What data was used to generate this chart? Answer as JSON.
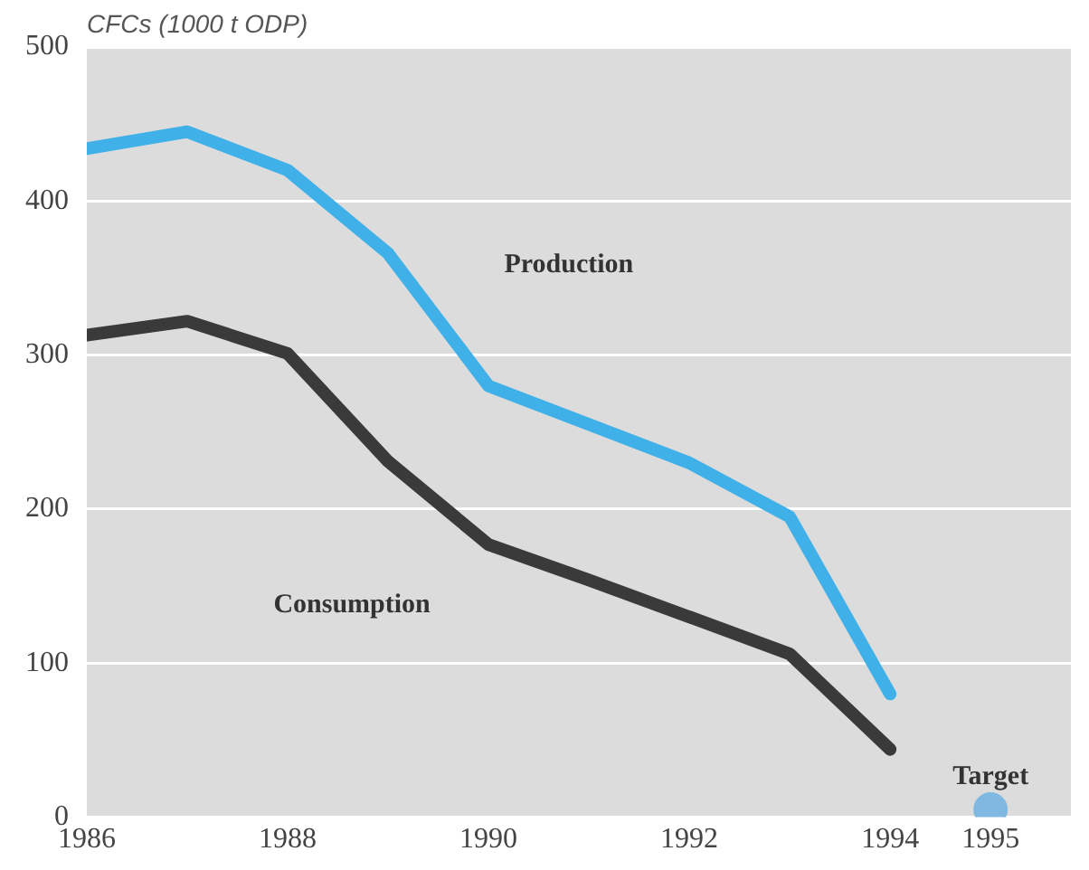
{
  "chart_data": {
    "type": "line",
    "ylabel": "CFCs (1000 t ODP)",
    "x": [
      1986,
      1987,
      1988,
      1989,
      1990,
      1991,
      1992,
      1993,
      1994
    ],
    "series": [
      {
        "name": "Production",
        "color": "#3fb0e8",
        "values": [
          434,
          445,
          420,
          366,
          280,
          255,
          230,
          195,
          80
        ]
      },
      {
        "name": "Consumption",
        "color": "#3a3a3a",
        "values": [
          313,
          322,
          301,
          231,
          177,
          154,
          130,
          106,
          44
        ]
      },
      {
        "name": "Target",
        "type": "scatter",
        "marker": "circle",
        "color": "#7fb8e0",
        "x": [
          1995
        ],
        "values": [
          5
        ]
      }
    ],
    "xlim": [
      1986,
      1995.8
    ],
    "xticks": [
      1986,
      1988,
      1990,
      1992,
      1994,
      1995
    ],
    "ylim": [
      0,
      500
    ],
    "yticks": [
      0,
      100,
      200,
      300,
      400,
      500
    ],
    "grid": "y",
    "legend": false
  }
}
